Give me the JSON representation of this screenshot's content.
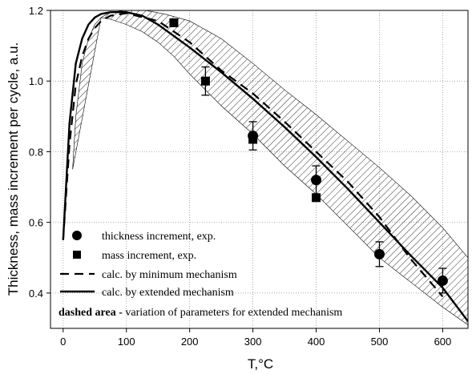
{
  "chart_data": {
    "type": "line",
    "title": "",
    "xlabel": "T,°C",
    "ylabel": "Thickness, mass increment per cycle, a.u.",
    "xlim": [
      -20,
      640
    ],
    "ylim": [
      0.3,
      1.2
    ],
    "x_ticks": [
      0,
      100,
      200,
      300,
      400,
      500,
      600
    ],
    "y_ticks": [
      0.4,
      0.6,
      0.8,
      1.0,
      1.2
    ],
    "x_tick_labels": [
      "0",
      "100",
      "200",
      "300",
      "400",
      "500",
      "600"
    ],
    "y_tick_labels": [
      "0.4",
      "0.6",
      "0.8",
      "1.0",
      "1.2"
    ],
    "grid": true,
    "legend_position": "bottom-left",
    "series": [
      {
        "name": "thickness increment, exp.",
        "kind": "scatter",
        "marker": "circle",
        "x": [
          300,
          400,
          500,
          600
        ],
        "y": [
          0.845,
          0.72,
          0.51,
          0.435
        ],
        "err": [
          0.04,
          0.04,
          0.035,
          0.035
        ]
      },
      {
        "name": "mass increment, exp.",
        "kind": "scatter",
        "marker": "square",
        "x": [
          175,
          225,
          300,
          400
        ],
        "y": [
          1.165,
          1.0,
          0.835,
          0.67
        ]
      },
      {
        "name": "calc. by minimum mechanism",
        "kind": "line",
        "style": "dashed",
        "x": [
          0,
          10,
          20,
          30,
          40,
          50,
          60,
          75,
          100,
          150,
          200,
          250,
          300,
          350,
          400,
          450,
          500,
          550,
          600
        ],
        "y": [
          0.55,
          0.82,
          0.99,
          1.07,
          1.12,
          1.15,
          1.17,
          1.185,
          1.192,
          1.17,
          1.11,
          1.03,
          0.965,
          0.885,
          0.8,
          0.715,
          0.615,
          0.495,
          0.39
        ]
      },
      {
        "name": "calc. by extended mechanism",
        "kind": "line",
        "style": "solid",
        "x": [
          0,
          10,
          20,
          30,
          40,
          50,
          60,
          75,
          100,
          125,
          150,
          200,
          250,
          300,
          350,
          400,
          450,
          500,
          550,
          600,
          640
        ],
        "y": [
          0.55,
          0.88,
          1.05,
          1.12,
          1.16,
          1.18,
          1.19,
          1.195,
          1.195,
          1.185,
          1.16,
          1.095,
          1.025,
          0.95,
          0.87,
          0.785,
          0.695,
          0.6,
          0.505,
          0.415,
          0.32
        ]
      }
    ],
    "band": {
      "upper": {
        "x": [
          15,
          20,
          30,
          40,
          50,
          60,
          75,
          100,
          130,
          160,
          200,
          250,
          300,
          350,
          400,
          450,
          500,
          550,
          600,
          640
        ],
        "y": [
          0.75,
          0.9,
          1.05,
          1.12,
          1.16,
          1.18,
          1.195,
          1.2,
          1.2,
          1.19,
          1.17,
          1.12,
          1.05,
          0.975,
          0.905,
          0.83,
          0.755,
          0.675,
          0.585,
          0.5
        ]
      },
      "lower": {
        "x": [
          60,
          75,
          100,
          125,
          150,
          175,
          200,
          250,
          300,
          350,
          400,
          450,
          500,
          550,
          600,
          640
        ],
        "y": [
          1.18,
          1.175,
          1.16,
          1.14,
          1.11,
          1.07,
          1.02,
          0.93,
          0.85,
          0.76,
          0.68,
          0.59,
          0.5,
          0.43,
          0.36,
          0.31
        ]
      }
    },
    "annotation": {
      "bold": "dashed area -",
      "text": " variation of parameters for extended mechanism"
    }
  }
}
